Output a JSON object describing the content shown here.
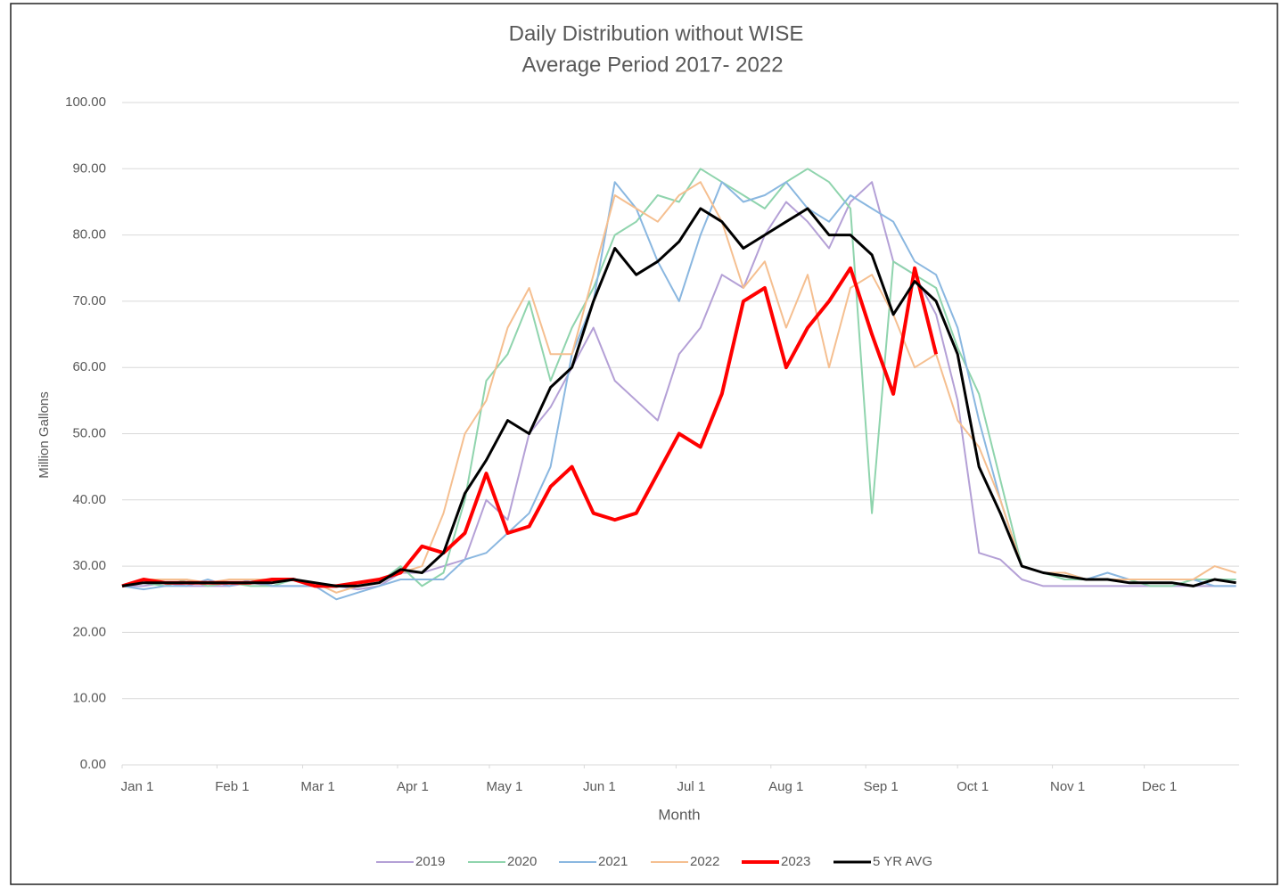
{
  "chart_data": {
    "type": "line",
    "title": "Daily Distribution without WISE",
    "subtitle": "Average Period 2017- 2022",
    "x_label": "Month",
    "y_label": "Million Gallons",
    "x": [
      0,
      7,
      14,
      21,
      28,
      35,
      42,
      49,
      56,
      63,
      70,
      77,
      84,
      91,
      98,
      105,
      112,
      119,
      126,
      133,
      140,
      147,
      154,
      161,
      168,
      175,
      182,
      189,
      196,
      203,
      210,
      217,
      224,
      231,
      238,
      245,
      252,
      259,
      266,
      273,
      280,
      287,
      294,
      301,
      308,
      315,
      322,
      329,
      336,
      343,
      350,
      357,
      364
    ],
    "xlim": [
      0,
      365
    ],
    "xticks": [
      {
        "value": 0,
        "label": "Jan 1"
      },
      {
        "value": 31,
        "label": "Feb 1"
      },
      {
        "value": 59,
        "label": "Mar 1"
      },
      {
        "value": 90,
        "label": "Apr 1"
      },
      {
        "value": 120,
        "label": "May 1"
      },
      {
        "value": 151,
        "label": "Jun 1"
      },
      {
        "value": 181,
        "label": "Jul 1"
      },
      {
        "value": 212,
        "label": "Aug 1"
      },
      {
        "value": 243,
        "label": "Sep 1"
      },
      {
        "value": 273,
        "label": "Oct 1"
      },
      {
        "value": 304,
        "label": "Nov 1"
      },
      {
        "value": 334,
        "label": "Dec 1"
      }
    ],
    "ylim": [
      0,
      100
    ],
    "yticks": [
      {
        "value": 0,
        "label": "0.00"
      },
      {
        "value": 10,
        "label": "10.00"
      },
      {
        "value": 20,
        "label": "20.00"
      },
      {
        "value": 30,
        "label": "30.00"
      },
      {
        "value": 40,
        "label": "40.00"
      },
      {
        "value": 50,
        "label": "50.00"
      },
      {
        "value": 60,
        "label": "60.00"
      },
      {
        "value": 70,
        "label": "70.00"
      },
      {
        "value": 80,
        "label": "80.00"
      },
      {
        "value": 90,
        "label": "90.00"
      },
      {
        "value": 100,
        "label": "100.00"
      }
    ],
    "grid": true,
    "legend": "bottom",
    "series": [
      {
        "name": "2019",
        "color": "#b4a0d6",
        "width": 2,
        "values": [
          27,
          27,
          27.5,
          27,
          27,
          27,
          27.5,
          27,
          27,
          27,
          27,
          26.5,
          27,
          29,
          29,
          30,
          31,
          40,
          37,
          50,
          54,
          60,
          66,
          58,
          55,
          52,
          62,
          66,
          74,
          72,
          80,
          85,
          82,
          78,
          85,
          88,
          76,
          74,
          68,
          55,
          32,
          31,
          28,
          27,
          27,
          27,
          27,
          27,
          27,
          27,
          27,
          27,
          27
        ]
      },
      {
        "name": "2020",
        "color": "#8fd4ad",
        "width": 2,
        "values": [
          27,
          27.5,
          27,
          28,
          27,
          27.5,
          27,
          27,
          28,
          27,
          27,
          27,
          27.5,
          30,
          27,
          29,
          40,
          58,
          62,
          70,
          58,
          66,
          72,
          80,
          82,
          86,
          85,
          90,
          88,
          86,
          84,
          88,
          90,
          88,
          84,
          38,
          76,
          74,
          72,
          63,
          56,
          43,
          30,
          29,
          28,
          28,
          28,
          28,
          27,
          27,
          28,
          28,
          28
        ]
      },
      {
        "name": "2021",
        "color": "#8ab7e0",
        "width": 2,
        "values": [
          27,
          26.5,
          27,
          27,
          28,
          27,
          28,
          27,
          27,
          27,
          25,
          26,
          27,
          28,
          28,
          28,
          31,
          32,
          35,
          38,
          45,
          62,
          70,
          88,
          84,
          76,
          70,
          80,
          88,
          85,
          86,
          88,
          84,
          82,
          86,
          84,
          82,
          76,
          74,
          66,
          52,
          40,
          30,
          29,
          29,
          28,
          29,
          28,
          28,
          28,
          28,
          27,
          27
        ]
      },
      {
        "name": "2022",
        "color": "#f5bf90",
        "width": 2,
        "values": [
          27,
          28,
          28,
          28,
          27.5,
          28,
          28,
          28,
          28,
          27.5,
          26,
          27,
          28,
          29,
          30,
          38,
          50,
          55,
          66,
          72,
          62,
          62,
          74,
          86,
          84,
          82,
          86,
          88,
          82,
          72,
          76,
          66,
          74,
          60,
          72,
          74,
          68,
          60,
          62,
          52,
          48,
          40,
          30,
          29,
          29,
          28,
          28,
          28,
          28,
          28,
          28,
          30,
          29
        ]
      },
      {
        "name": "2023",
        "color": "#ff0000",
        "width": 4,
        "values": [
          27,
          28,
          27.5,
          27.5,
          27.5,
          27.5,
          27.5,
          28,
          28,
          27,
          27,
          27.5,
          28,
          29,
          33,
          32,
          35,
          44,
          35,
          36,
          42,
          45,
          38,
          37,
          38,
          44,
          50,
          48,
          56,
          70,
          72,
          60,
          66,
          70,
          75,
          65,
          56,
          75,
          62,
          null,
          null,
          null,
          null,
          null,
          null,
          null,
          null,
          null,
          null,
          null,
          null,
          null,
          null
        ]
      },
      {
        "name": "5 YR AVG",
        "color": "#000000",
        "width": 3,
        "values": [
          27,
          27.5,
          27.5,
          27.5,
          27.5,
          27.5,
          27.5,
          27.5,
          28,
          27.5,
          27,
          27,
          27.5,
          29.5,
          29,
          32,
          41,
          46,
          52,
          50,
          57,
          60,
          70,
          78,
          74,
          76,
          79,
          84,
          82,
          78,
          80,
          82,
          84,
          80,
          80,
          77,
          68,
          73,
          70,
          62,
          45,
          38,
          30,
          29,
          28.5,
          28,
          28,
          27.5,
          27.5,
          27.5,
          27,
          28,
          27.5
        ]
      }
    ]
  }
}
